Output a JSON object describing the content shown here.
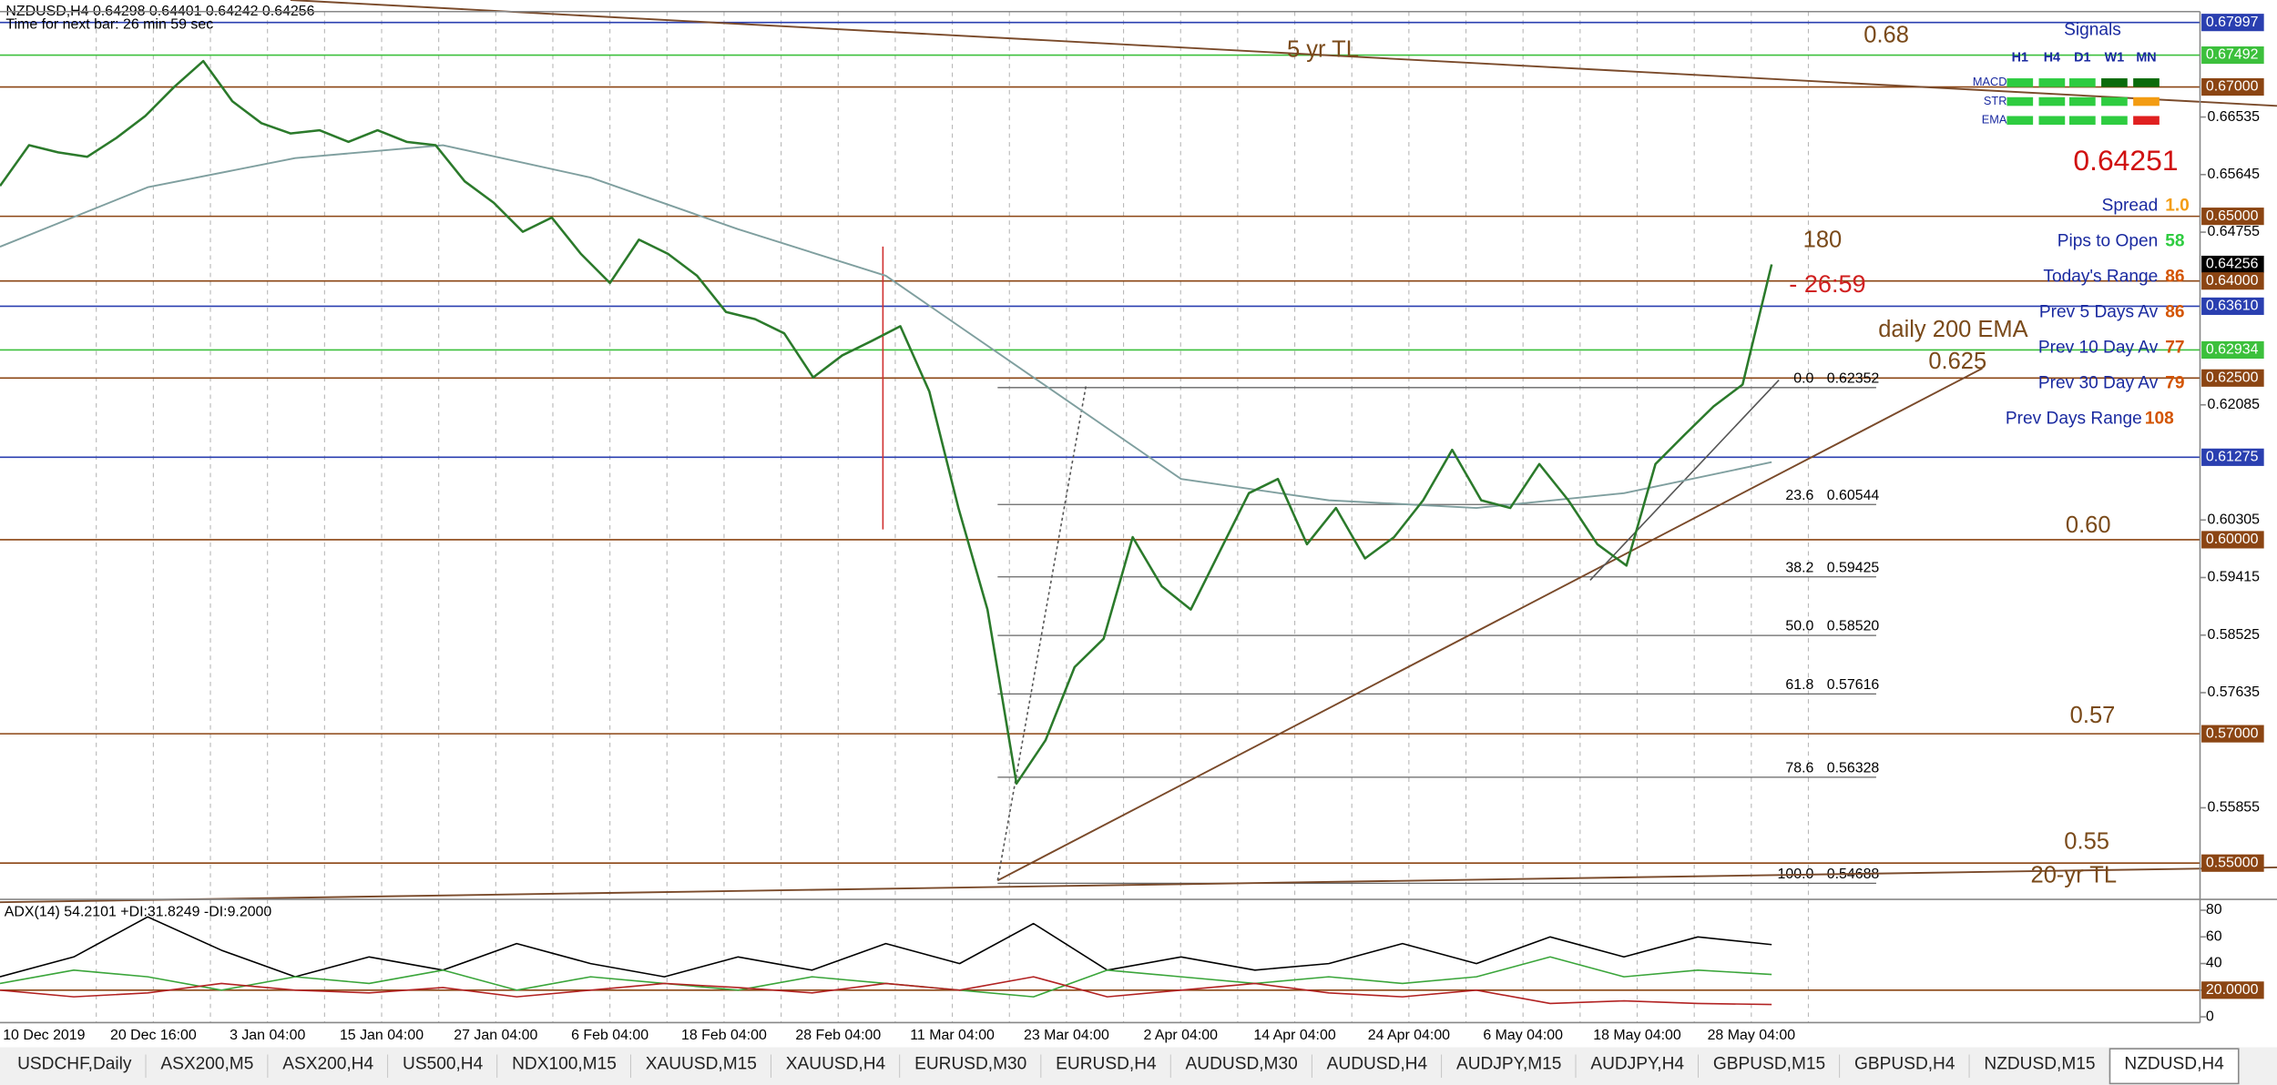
{
  "header": {
    "symbol_line": "NZDUSD,H4  0.64298 0.64401 0.64242 0.64256",
    "timer": "Time for next bar: 26 min 59 sec"
  },
  "price_chart": {
    "type": "line",
    "ylim": [
      0.5444,
      0.6812
    ],
    "values": [
      0.6547,
      0.661,
      0.6599,
      0.6592,
      0.6621,
      0.6655,
      0.67,
      0.674,
      0.6678,
      0.6644,
      0.6628,
      0.6633,
      0.6615,
      0.6633,
      0.6615,
      0.661,
      0.6554,
      0.6521,
      0.6476,
      0.6498,
      0.6442,
      0.6397,
      0.6464,
      0.6442,
      0.6408,
      0.6352,
      0.6341,
      0.6319,
      0.6251,
      0.6285,
      0.6307,
      0.633,
      0.6229,
      0.6049,
      0.5892,
      0.5623,
      0.569,
      0.5803,
      0.5847,
      0.6004,
      0.5928,
      0.5892,
      0.5982,
      0.6072,
      0.6094,
      0.5993,
      0.6049,
      0.5971,
      0.6004,
      0.6061,
      0.6139,
      0.6061,
      0.6049,
      0.6117,
      0.6061,
      0.5993,
      0.596,
      0.6117,
      0.6162,
      0.6206,
      0.624,
      0.64256
    ],
    "color": "#2b7a2b",
    "ema200": [
      0.6453,
      0.6545,
      0.659,
      0.661,
      0.656,
      0.648,
      0.6408,
      0.6251,
      0.6094,
      0.6061,
      0.6049,
      0.6072,
      0.612
    ],
    "ema_color": "#7f9f9f",
    "price_levels": [
      {
        "value": 0.67997,
        "label": "0.67997",
        "color": "#2a3fb0"
      },
      {
        "value": 0.67492,
        "label": "0.67492",
        "color": "#3cc03c"
      },
      {
        "value": 0.67,
        "label": "0.67000",
        "color": "#8b4513"
      },
      {
        "value": 0.65,
        "label": "0.65000",
        "color": "#8b4513"
      },
      {
        "value": 0.64256,
        "label": "0.64256",
        "color": "#000000"
      },
      {
        "value": 0.64,
        "label": "0.64000",
        "color": "#8b4513"
      },
      {
        "value": 0.6361,
        "label": "0.63610",
        "color": "#2a3fb0"
      },
      {
        "value": 0.62934,
        "label": "0.62934",
        "color": "#3cc03c"
      },
      {
        "value": 0.625,
        "label": "0.62500",
        "color": "#8b4513"
      },
      {
        "value": 0.61275,
        "label": "0.61275",
        "color": "#2a3fb0"
      },
      {
        "value": 0.6,
        "label": "0.60000",
        "color": "#8b4513"
      },
      {
        "value": 0.57,
        "label": "0.57000",
        "color": "#8b4513"
      },
      {
        "value": 0.55,
        "label": "0.55000",
        "color": "#8b4513"
      }
    ],
    "yticks": [
      {
        "value": 0.66535,
        "label": "0.66535"
      },
      {
        "value": 0.65645,
        "label": "0.65645"
      },
      {
        "value": 0.64755,
        "label": "0.64755"
      },
      {
        "value": 0.62085,
        "label": "0.62085"
      },
      {
        "value": 0.60305,
        "label": "0.60305"
      },
      {
        "value": 0.59415,
        "label": "0.59415"
      },
      {
        "value": 0.58525,
        "label": "0.58525"
      },
      {
        "value": 0.57635,
        "label": "0.57635"
      },
      {
        "value": 0.55855,
        "label": "0.55855"
      }
    ],
    "fib_levels": [
      {
        "ratio": "0.0",
        "price": {
          "value": 0.62352,
          "label": "0.62352"
        }
      },
      {
        "ratio": "23.6",
        "price": {
          "value": 0.60544,
          "label": "0.60544"
        }
      },
      {
        "ratio": "38.2",
        "price": {
          "value": 0.59425,
          "label": "0.59425"
        }
      },
      {
        "ratio": "50.0",
        "price": {
          "value": 0.5852,
          "label": "0.58520"
        }
      },
      {
        "ratio": "61.8",
        "price": {
          "value": 0.57616,
          "label": "0.57616"
        }
      },
      {
        "ratio": "78.6",
        "price": {
          "value": 0.56328,
          "label": "0.56328"
        }
      },
      {
        "ratio": "100.0",
        "price": {
          "value": 0.54688,
          "label": "0.54688"
        }
      }
    ],
    "x_labels": [
      "10 Dec 2019",
      "20 Dec 16:00",
      "3 Jan 04:00",
      "15 Jan 04:00",
      "27 Jan 04:00",
      "6 Feb 04:00",
      "18 Feb 04:00",
      "28 Feb 04:00",
      "11 Mar 04:00",
      "23 Mar 04:00",
      "2 Apr 04:00",
      "14 Apr 04:00",
      "24 Apr 04:00",
      "6 May 04:00",
      "18 May 04:00",
      "28 May 04:00"
    ],
    "grid": true
  },
  "annotations": {
    "level_068": "0.68",
    "tl_5yr": "5 yr TL",
    "pips_180": "180",
    "countdown": "- 26:59",
    "ema_label": "daily 200 EMA",
    "level_0625": "0.625",
    "level_060": "0.60",
    "level_057": "0.57",
    "level_055": "0.55",
    "tl_20yr": "20-yr TL"
  },
  "signals": {
    "title": "Signals",
    "columns": [
      "H1",
      "H4",
      "D1",
      "W1",
      "MN"
    ],
    "rows": [
      "MACD",
      "STR",
      "EMA"
    ]
  },
  "info_panel": {
    "bid": "0.64251",
    "stats": [
      {
        "label": "Spread",
        "value": "1.0"
      },
      {
        "label": "Pips to Open",
        "value": "58"
      },
      {
        "label": "Today's Range",
        "value": "86"
      },
      {
        "label": "Prev 5 Days Av",
        "value": "86"
      },
      {
        "label": "Prev 10 Day Av",
        "value": "77"
      },
      {
        "label": "Prev 30 Day Av",
        "value": "79"
      },
      {
        "label": "Prev Days Range",
        "value": "108"
      }
    ]
  },
  "adx_chart": {
    "type": "line",
    "title": "ADX(14) 54.2101 +DI:31.8249 -DI:9.2000",
    "ylim": [
      0,
      86
    ],
    "yticks": [
      80,
      60,
      40,
      {
        "value": 20,
        "label": "20.0000"
      },
      0
    ],
    "series": [
      {
        "name": "ADX",
        "color": "#000000",
        "values": [
          30,
          45,
          75,
          50,
          30,
          45,
          35,
          55,
          40,
          30,
          45,
          35,
          55,
          40,
          70,
          35,
          45,
          35,
          40,
          55,
          40,
          60,
          45,
          60,
          54.2
        ]
      },
      {
        "name": "+DI",
        "color": "#3aa53a",
        "values": [
          25,
          35,
          30,
          20,
          30,
          25,
          35,
          20,
          30,
          25,
          20,
          30,
          25,
          20,
          15,
          35,
          30,
          25,
          30,
          25,
          30,
          45,
          30,
          35,
          31.8
        ]
      },
      {
        "name": "-DI",
        "color": "#b22222",
        "values": [
          20,
          15,
          18,
          25,
          20,
          18,
          22,
          15,
          20,
          25,
          22,
          18,
          25,
          20,
          30,
          15,
          20,
          25,
          18,
          15,
          20,
          10,
          12,
          10,
          9.2
        ]
      }
    ]
  },
  "tabs": {
    "items": [
      "USDCHF,Daily",
      "ASX200,M5",
      "ASX200,H4",
      "US500,H4",
      "NDX100,M15",
      "XAUUSD,M15",
      "XAUUSD,H4",
      "EURUSD,M30",
      "EURUSD,H4",
      "AUDUSD,M30",
      "AUDUSD,H4",
      "AUDJPY,M15",
      "AUDJPY,H4",
      "GBPUSD,M15",
      "GBPUSD,H4",
      "NZDUSD,M15",
      "NZDUSD,H4"
    ],
    "active": 16
  }
}
